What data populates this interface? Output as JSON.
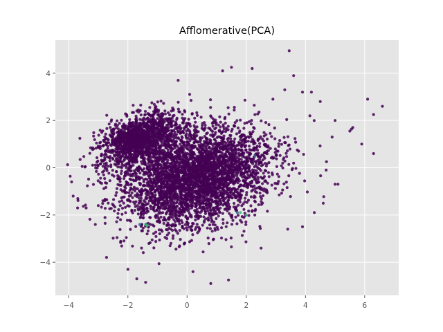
{
  "chart_data": {
    "type": "scatter",
    "title": "Afflomerative(PCA)",
    "xlabel": "",
    "ylabel": "",
    "xlim": [
      -4.45,
      7.15
    ],
    "ylim": [
      -5.4,
      5.4
    ],
    "x_ticks": [
      -4,
      -2,
      0,
      2,
      4,
      6
    ],
    "y_ticks": [
      -4,
      -2,
      0,
      2,
      4
    ],
    "grid": true,
    "legend": "none",
    "style": "ggplot",
    "colors": {
      "background": "#e5e5e5",
      "grid": "#ffffff",
      "dominant_cluster": "#440154",
      "minor_cluster_a": "#35b779",
      "minor_cluster_b": "#31688e"
    },
    "series": [
      {
        "name": "",
        "color": "#440154",
        "description_of_distribution": "two dense point clouds",
        "clusters": [
          {
            "center": [
              -1.6,
              1.2
            ],
            "spread": [
              0.75,
              0.45
            ],
            "angle_deg": 35,
            "count": 1400
          },
          {
            "center": [
              0.3,
              -0.4
            ],
            "spread": [
              1.3,
              0.95
            ],
            "angle_deg": 30,
            "count": 3800
          }
        ],
        "scattered_points": [
          [
            3.45,
            4.95
          ],
          [
            6.3,
            2.25
          ],
          [
            6.6,
            2.6
          ],
          [
            6.1,
            2.9
          ],
          [
            5.9,
            1.0
          ],
          [
            5.6,
            1.7
          ],
          [
            5.5,
            1.55
          ],
          [
            6.3,
            0.6
          ],
          [
            5.0,
            -0.7
          ],
          [
            5.1,
            -0.7
          ],
          [
            4.9,
            1.3
          ],
          [
            4.7,
            -0.1
          ],
          [
            4.6,
            -1.5
          ],
          [
            4.3,
            -1.9
          ],
          [
            3.9,
            -2.5
          ],
          [
            -3.9,
            -0.6
          ],
          [
            -3.85,
            -1.2
          ],
          [
            -3.7,
            -1.7
          ],
          [
            -3.1,
            -2.4
          ],
          [
            -2.0,
            -4.3
          ],
          [
            -1.7,
            -4.7
          ],
          [
            -1.4,
            -4.85
          ],
          [
            0.8,
            -4.9
          ],
          [
            1.4,
            -4.75
          ],
          [
            3.6,
            3.9
          ],
          [
            3.3,
            3.3
          ],
          [
            2.2,
            4.2
          ],
          [
            1.5,
            4.25
          ],
          [
            1.2,
            4.1
          ],
          [
            4.2,
            3.2
          ],
          [
            4.5,
            2.8
          ],
          [
            -0.3,
            3.7
          ],
          [
            2.9,
            2.9
          ],
          [
            3.9,
            3.2
          ],
          [
            5.0,
            2.0
          ],
          [
            -3.0,
            -1.6
          ],
          [
            2.5,
            -3.4
          ],
          [
            3.4,
            -2.6
          ],
          [
            0.2,
            -4.4
          ]
        ]
      },
      {
        "name": "",
        "color": "#35b779",
        "points": [
          [
            -1.4,
            -2.4
          ],
          [
            -1.35,
            -2.45
          ],
          [
            2.0,
            -2.0
          ],
          [
            1.8,
            -1.9
          ]
        ]
      },
      {
        "name": "",
        "color": "#31688e",
        "points": [
          [
            2.3,
            0.5
          ],
          [
            1.7,
            -1.9
          ],
          [
            -1.6,
            -2.4
          ]
        ]
      }
    ]
  }
}
